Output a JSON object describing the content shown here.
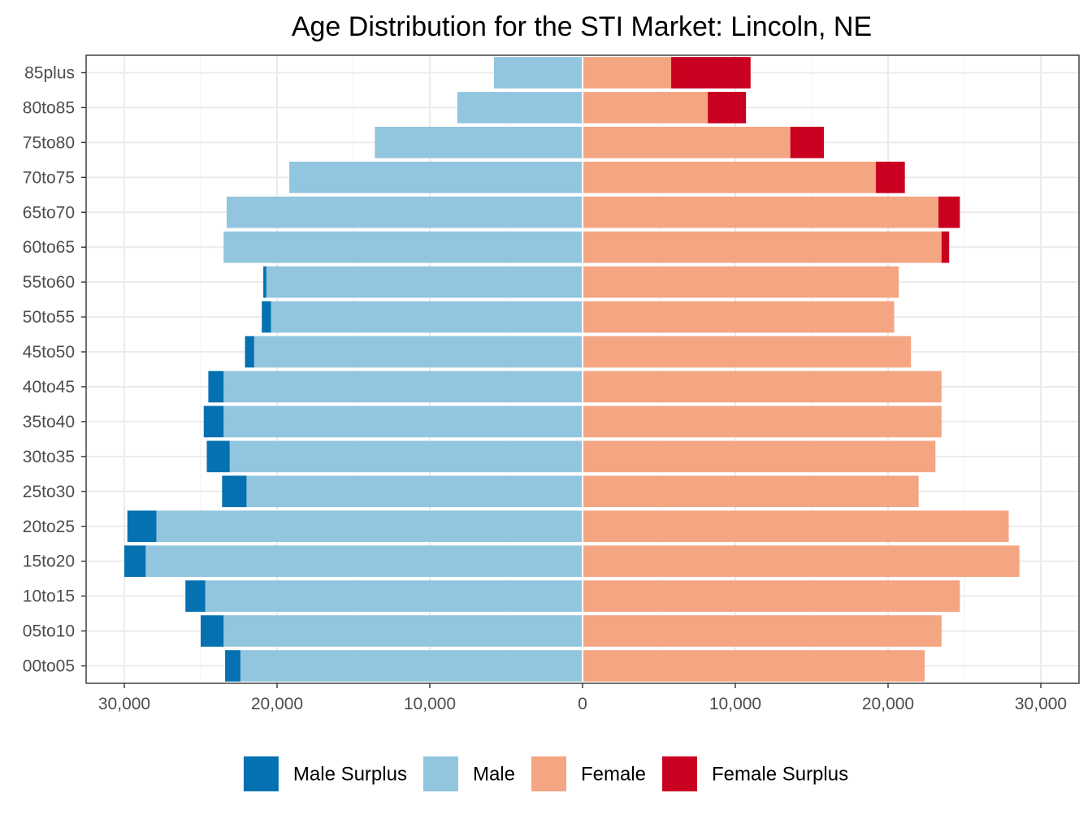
{
  "chart_data": {
    "type": "bar",
    "orientation": "horizontal-diverging",
    "title": "Age Distribution for the STI Market: Lincoln, NE",
    "xlabel": "",
    "ylabel": "",
    "categories": [
      "00to05",
      "05to10",
      "10to15",
      "15to20",
      "20to25",
      "25to30",
      "30to35",
      "35to40",
      "40to45",
      "45to50",
      "50to55",
      "55to60",
      "60to65",
      "65to70",
      "70to75",
      "75to80",
      "80to85",
      "85plus"
    ],
    "xlim": [
      -32500,
      32500
    ],
    "x_ticks": [
      -30000,
      -20000,
      -10000,
      0,
      10000,
      20000,
      30000
    ],
    "x_tick_labels": [
      "30,000",
      "20,000",
      "10,000",
      "0",
      "10,000",
      "20,000",
      "30,000"
    ],
    "series": [
      {
        "name": "Male",
        "side": "left",
        "color": "#92c5de",
        "values": [
          22400,
          23500,
          24700,
          28600,
          27900,
          22000,
          23100,
          23500,
          23500,
          21500,
          20400,
          20700,
          23500,
          23300,
          19200,
          13600,
          8200,
          5800
        ]
      },
      {
        "name": "Male Surplus",
        "side": "left",
        "color": "#0571b0",
        "values": [
          1000,
          1500,
          1300,
          1400,
          1900,
          1600,
          1500,
          1300,
          1000,
          600,
          600,
          200,
          0,
          0,
          0,
          0,
          0,
          0
        ]
      },
      {
        "name": "Female",
        "side": "right",
        "color": "#f4a582",
        "values": [
          22400,
          23500,
          24700,
          28600,
          27900,
          22000,
          23100,
          23500,
          23500,
          21500,
          20400,
          20700,
          23500,
          23300,
          19200,
          13600,
          8200,
          5800
        ]
      },
      {
        "name": "Female Surplus",
        "side": "right",
        "color": "#ca0020",
        "values": [
          0,
          0,
          0,
          0,
          0,
          0,
          0,
          0,
          0,
          0,
          0,
          0,
          500,
          1400,
          1900,
          2200,
          2500,
          5200
        ]
      }
    ],
    "legend": {
      "position": "bottom",
      "items": [
        {
          "label": "Male Surplus",
          "color": "#0571b0"
        },
        {
          "label": "Male",
          "color": "#92c5de"
        },
        {
          "label": "Female",
          "color": "#f4a582"
        },
        {
          "label": "Female Surplus",
          "color": "#ca0020"
        }
      ]
    },
    "grid": true
  }
}
